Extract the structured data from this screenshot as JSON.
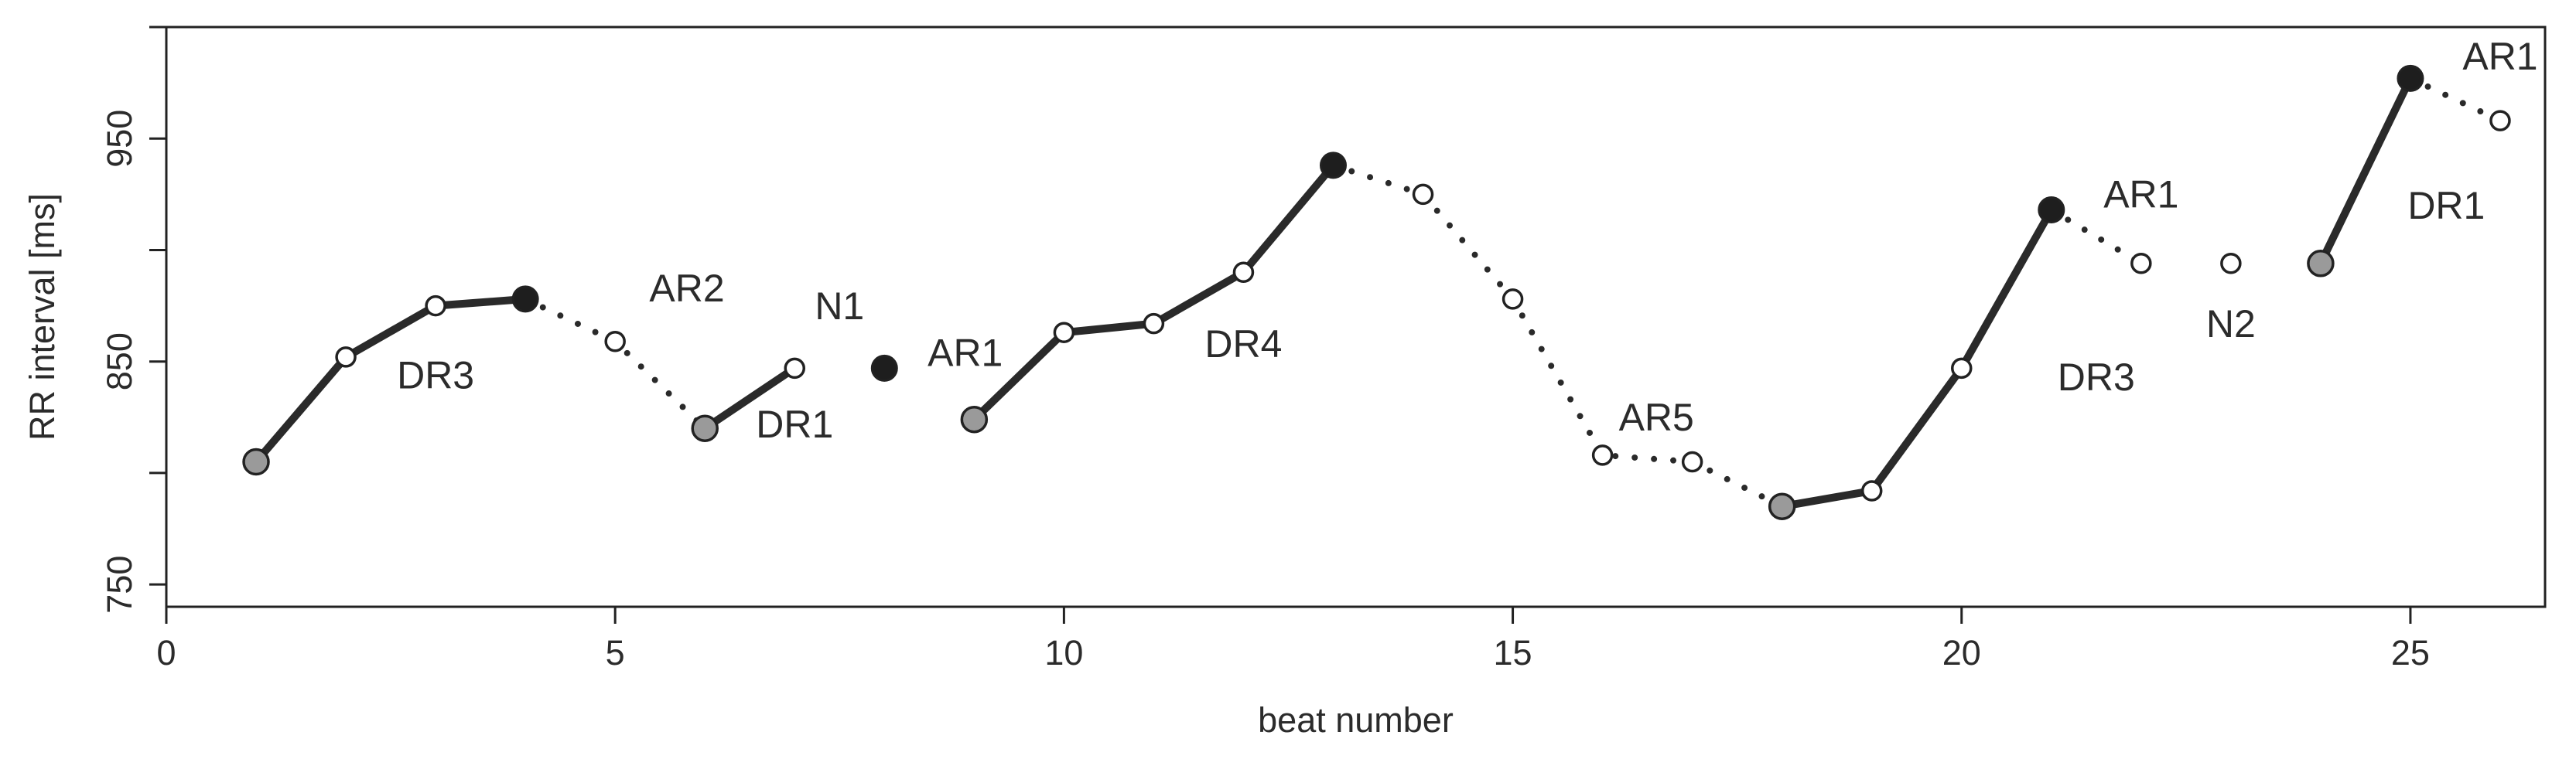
{
  "chart_data": {
    "type": "line",
    "xlabel": "beat number",
    "ylabel": "RR interval [ms]",
    "xlim": [
      0,
      26.5
    ],
    "ylim": [
      740,
      1000
    ],
    "xticks": [
      0,
      5,
      10,
      15,
      20,
      25
    ],
    "yticks": [
      750,
      850,
      950
    ],
    "points": [
      {
        "x": 1,
        "y": 805,
        "kind": "gray"
      },
      {
        "x": 2,
        "y": 852,
        "kind": "open"
      },
      {
        "x": 3,
        "y": 875,
        "kind": "open"
      },
      {
        "x": 4,
        "y": 878,
        "kind": "black"
      },
      {
        "x": 5,
        "y": 859,
        "kind": "open"
      },
      {
        "x": 6,
        "y": 820,
        "kind": "gray"
      },
      {
        "x": 7,
        "y": 847,
        "kind": "open"
      },
      {
        "x": 8,
        "y": 847,
        "kind": "black"
      },
      {
        "x": 9,
        "y": 824,
        "kind": "gray"
      },
      {
        "x": 10,
        "y": 863,
        "kind": "open"
      },
      {
        "x": 11,
        "y": 867,
        "kind": "open"
      },
      {
        "x": 12,
        "y": 890,
        "kind": "open"
      },
      {
        "x": 13,
        "y": 938,
        "kind": "black"
      },
      {
        "x": 14,
        "y": 925,
        "kind": "open"
      },
      {
        "x": 15,
        "y": 878,
        "kind": "open"
      },
      {
        "x": 16,
        "y": 808,
        "kind": "open"
      },
      {
        "x": 17,
        "y": 805,
        "kind": "open"
      },
      {
        "x": 18,
        "y": 785,
        "kind": "gray"
      },
      {
        "x": 19,
        "y": 792,
        "kind": "open"
      },
      {
        "x": 20,
        "y": 847,
        "kind": "open"
      },
      {
        "x": 21,
        "y": 918,
        "kind": "black"
      },
      {
        "x": 22,
        "y": 894,
        "kind": "open"
      },
      {
        "x": 23,
        "y": 894,
        "kind": "open"
      },
      {
        "x": 24,
        "y": 894,
        "kind": "gray"
      },
      {
        "x": 25,
        "y": 977,
        "kind": "black"
      },
      {
        "x": 26,
        "y": 958,
        "kind": "open"
      }
    ],
    "segments": [
      {
        "from": 1,
        "to": 4,
        "style": "solid"
      },
      {
        "from": 4,
        "to": 6,
        "style": "dotted"
      },
      {
        "from": 6,
        "to": 7,
        "style": "solid"
      },
      {
        "from": 9,
        "to": 13,
        "style": "solid"
      },
      {
        "from": 13,
        "to": 18,
        "style": "dotted"
      },
      {
        "from": 18,
        "to": 21,
        "style": "solid"
      },
      {
        "from": 21,
        "to": 22,
        "style": "dotted"
      },
      {
        "from": 24,
        "to": 25,
        "style": "solid"
      },
      {
        "from": 25,
        "to": 26,
        "style": "dotted"
      }
    ],
    "annotations": [
      {
        "text": "DR3",
        "x": 3.0,
        "y": 838
      },
      {
        "text": "AR2",
        "x": 5.8,
        "y": 877
      },
      {
        "text": "N1",
        "x": 7.5,
        "y": 869
      },
      {
        "text": "DR1",
        "x": 7.0,
        "y": 816
      },
      {
        "text": "AR1",
        "x": 8.9,
        "y": 848
      },
      {
        "text": "DR4",
        "x": 12.0,
        "y": 852
      },
      {
        "text": "AR5",
        "x": 16.6,
        "y": 819
      },
      {
        "text": "AR1",
        "x": 22.0,
        "y": 919
      },
      {
        "text": "DR3",
        "x": 21.5,
        "y": 837
      },
      {
        "text": "N2",
        "x": 23.0,
        "y": 861
      },
      {
        "text": "AR1",
        "x": 26.0,
        "y": 981
      },
      {
        "text": "DR1",
        "x": 25.4,
        "y": 914
      }
    ]
  }
}
